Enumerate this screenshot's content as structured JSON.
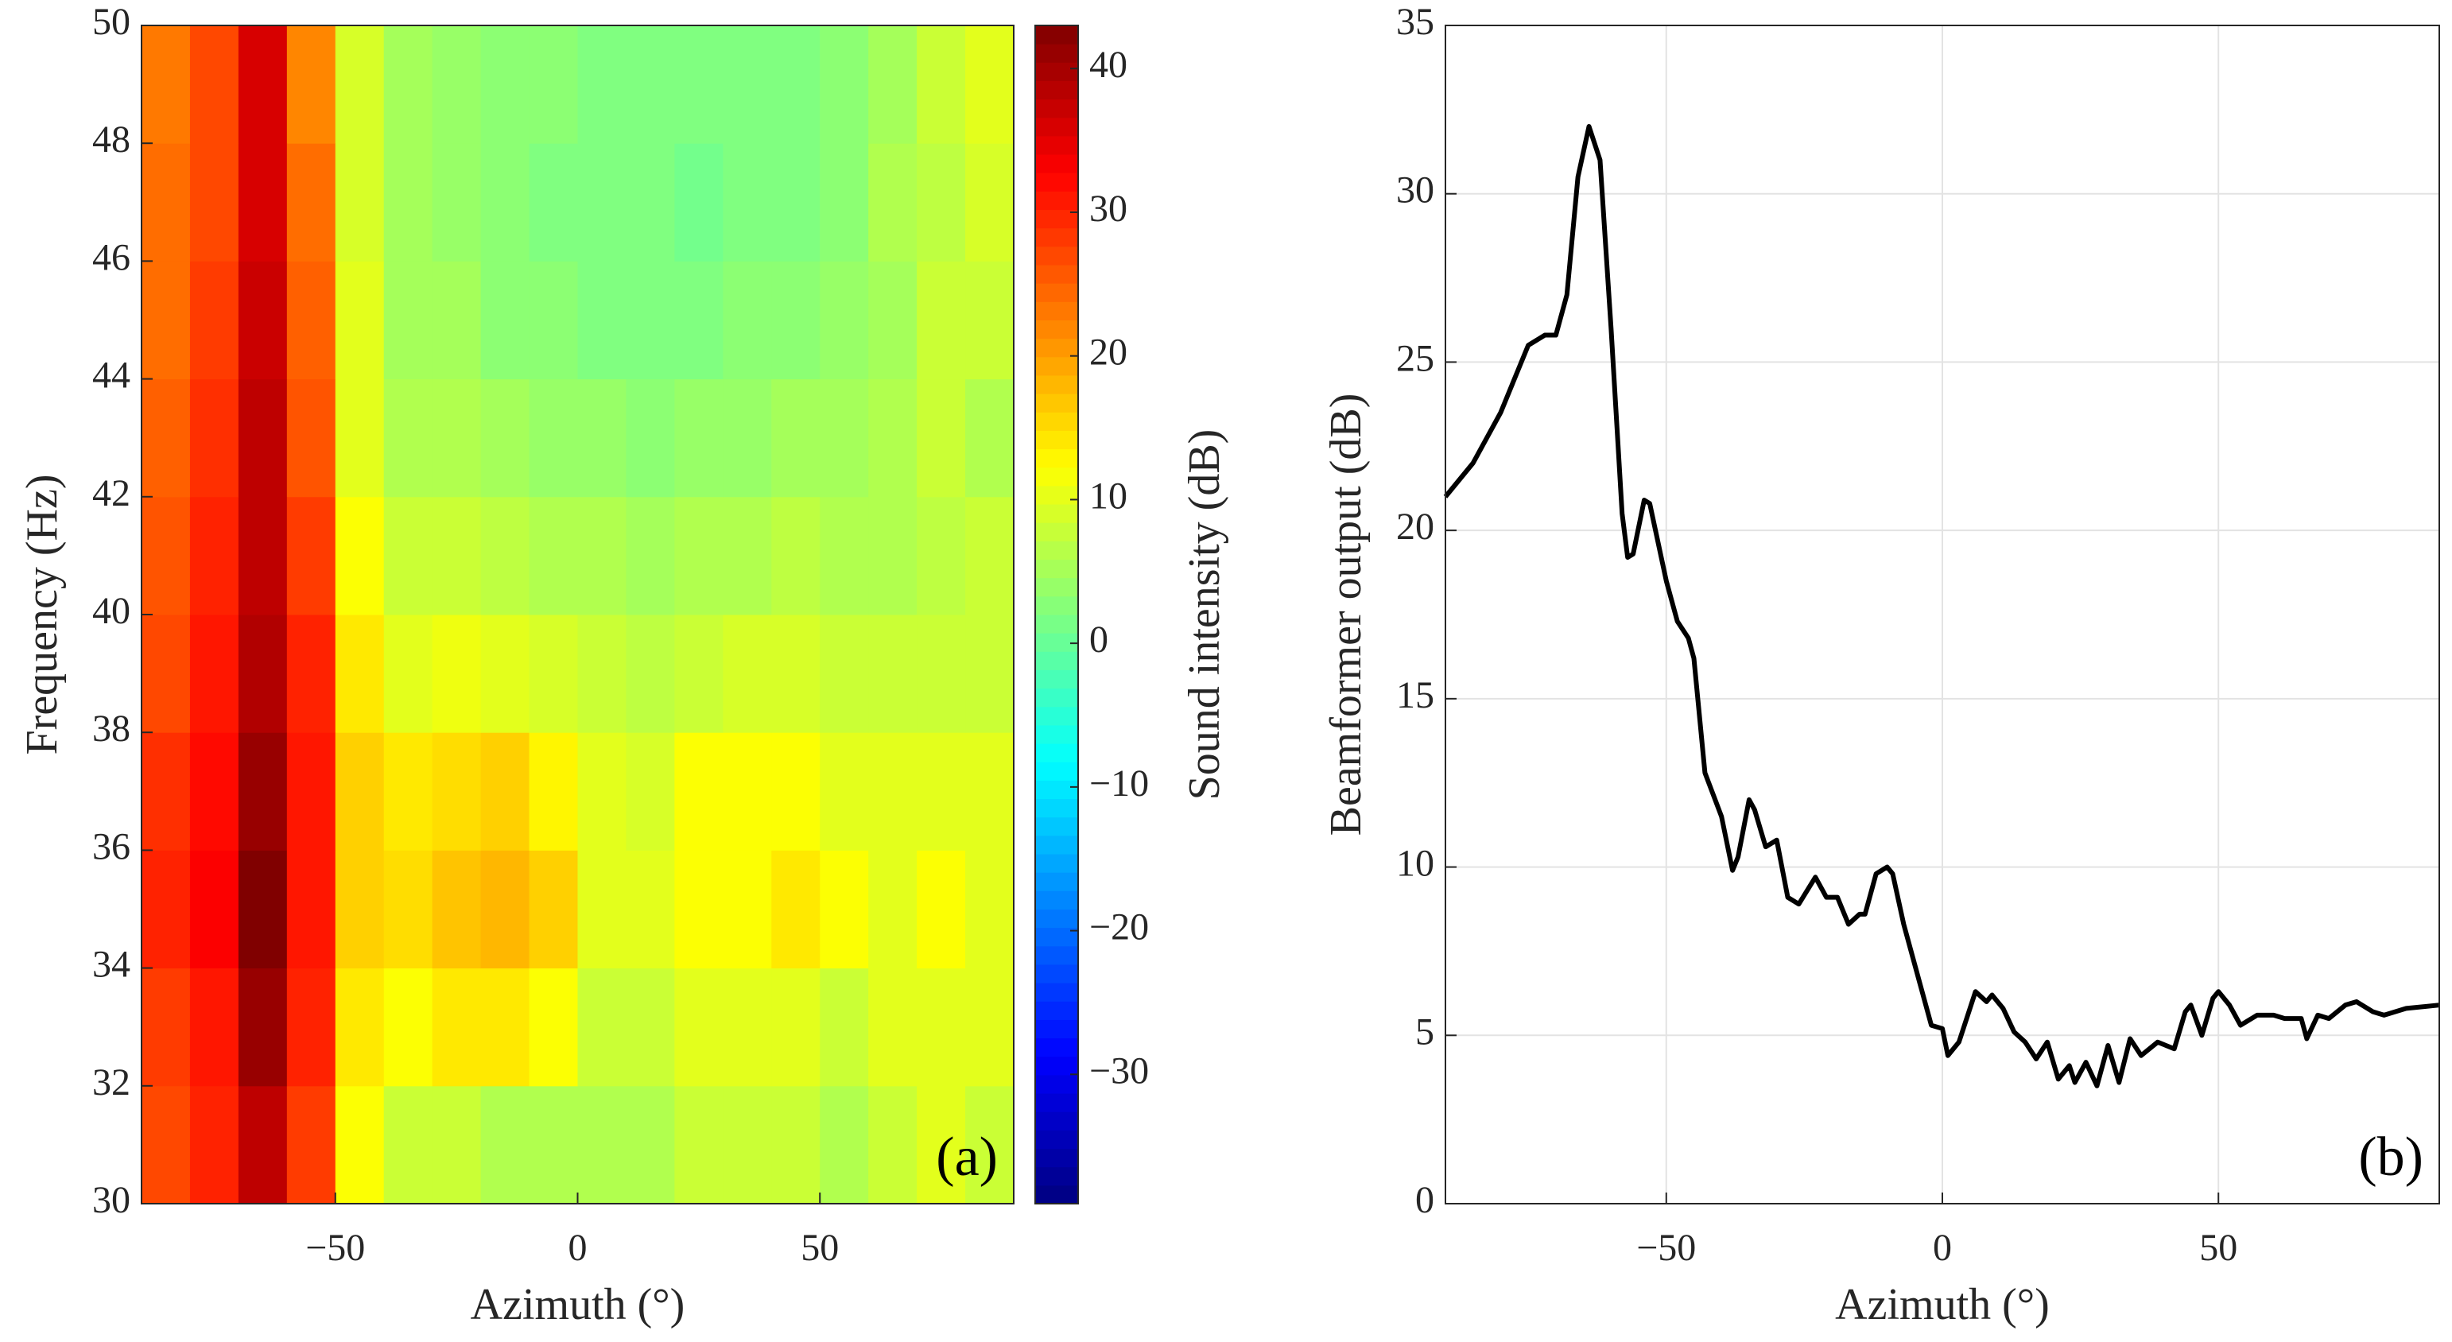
{
  "chart_data": [
    {
      "type": "heatmap",
      "xlabel": "Azimuth (°)",
      "ylabel": "Frequency (Hz)",
      "clabel": "Sound intensity (dB)",
      "annotation": "(a)",
      "x": [
        -85,
        -75,
        -65,
        -55,
        -45,
        -35,
        -25,
        -15,
        -5,
        5,
        15,
        25,
        35,
        45,
        55,
        65,
        75,
        85
      ],
      "y": [
        31,
        33,
        35,
        37,
        39,
        41,
        43,
        45,
        47,
        49
      ],
      "z": [
        [
          27,
          30,
          38,
          28,
          12,
          8,
          8,
          6,
          6,
          6,
          6,
          8,
          8,
          8,
          6,
          8,
          10,
          8
        ],
        [
          28,
          31,
          41,
          30,
          14,
          12,
          14,
          14,
          12,
          8,
          8,
          10,
          10,
          10,
          8,
          10,
          10,
          10
        ],
        [
          30,
          33,
          43,
          31,
          16,
          15,
          17,
          18,
          16,
          10,
          10,
          12,
          12,
          14,
          12,
          10,
          12,
          10
        ],
        [
          29,
          32,
          41,
          31,
          16,
          14,
          15,
          16,
          13,
          10,
          9,
          12,
          12,
          12,
          10,
          10,
          10,
          10
        ],
        [
          27,
          31,
          39,
          30,
          14,
          10,
          11,
          10,
          9,
          8,
          7,
          8,
          9,
          9,
          8,
          8,
          8,
          8
        ],
        [
          26,
          30,
          38,
          28,
          12,
          8,
          8,
          7,
          6,
          6,
          5,
          6,
          6,
          7,
          6,
          6,
          7,
          8
        ],
        [
          25,
          29,
          38,
          26,
          10,
          6,
          6,
          5,
          4,
          4,
          3,
          4,
          4,
          5,
          5,
          6,
          8,
          6
        ],
        [
          24,
          28,
          37,
          25,
          10,
          5,
          5,
          3,
          3,
          2,
          2,
          2,
          3,
          3,
          4,
          5,
          8,
          8
        ],
        [
          24,
          27,
          36,
          24,
          9,
          5,
          4,
          3,
          2,
          2,
          2,
          1,
          2,
          2,
          3,
          6,
          7,
          9
        ],
        [
          23,
          27,
          36,
          22,
          9,
          5,
          4,
          3,
          3,
          2,
          2,
          2,
          2,
          2,
          3,
          5,
          8,
          10
        ]
      ],
      "xlim": [
        -90,
        90
      ],
      "ylim": [
        30,
        50
      ],
      "xticks": [
        {
          "value": -50,
          "label": "−50"
        },
        0,
        50
      ],
      "yticks": [
        30,
        32,
        34,
        36,
        38,
        40,
        42,
        44,
        46,
        48,
        50
      ],
      "clim": [
        -39,
        43
      ],
      "colormap": "jet",
      "cticks": [
        {
          "value": -30,
          "label": "−30"
        },
        {
          "value": -20,
          "label": "−20"
        },
        {
          "value": -10,
          "label": "−10"
        },
        0,
        10,
        20,
        30,
        40
      ]
    },
    {
      "type": "line",
      "xlabel": "Azimuth (°)",
      "ylabel": "Beamformer output (dB)",
      "annotation": "(b)",
      "color": "#000000",
      "grid": true,
      "x": [
        -90,
        -85,
        -80,
        -75,
        -72,
        -70,
        -68,
        -66,
        -64,
        -62,
        -60,
        -58,
        -57,
        -56,
        -54,
        -53,
        -50,
        -48,
        -46,
        -45,
        -43,
        -40,
        -38,
        -37,
        -35,
        -34,
        -32,
        -30,
        -28,
        -26,
        -23,
        -21,
        -19,
        -17,
        -15,
        -14,
        -12,
        -10,
        -9,
        -7,
        -4,
        -2,
        0,
        1,
        3,
        6,
        8,
        9,
        11,
        13,
        15,
        17,
        19,
        21,
        23,
        24,
        26,
        28,
        30,
        32,
        34,
        36,
        39,
        42,
        44,
        45,
        47,
        49,
        50,
        52,
        54,
        57,
        60,
        62,
        65,
        66,
        68,
        70,
        73,
        75,
        78,
        80,
        84,
        90
      ],
      "values": [
        21,
        22,
        23.5,
        25.5,
        25.8,
        25.8,
        27,
        30.5,
        32,
        31,
        26,
        20.5,
        19.2,
        19.3,
        20.9,
        20.8,
        18.5,
        17.3,
        16.8,
        16.2,
        12.8,
        11.5,
        9.9,
        10.3,
        12,
        11.7,
        10.6,
        10.8,
        9.1,
        8.9,
        9.7,
        9.1,
        9.1,
        8.3,
        8.6,
        8.6,
        9.8,
        10,
        9.8,
        8.3,
        6.5,
        5.3,
        5.2,
        4.4,
        4.8,
        6.3,
        6,
        6.2,
        5.8,
        5.1,
        4.8,
        4.3,
        4.8,
        3.7,
        4.1,
        3.6,
        4.2,
        3.5,
        4.7,
        3.6,
        4.9,
        4.4,
        4.8,
        4.6,
        5.7,
        5.9,
        5,
        6.1,
        6.3,
        5.9,
        5.3,
        5.6,
        5.6,
        5.5,
        5.5,
        4.9,
        5.6,
        5.5,
        5.9,
        6,
        5.7,
        5.6,
        5.8,
        5.9
      ],
      "xlim": [
        -90,
        90
      ],
      "ylim": [
        0,
        35
      ],
      "xticks": [
        {
          "value": -50,
          "label": "−50"
        },
        0,
        50
      ],
      "yticks": [
        0,
        5,
        10,
        15,
        20,
        25,
        30,
        35
      ]
    }
  ]
}
